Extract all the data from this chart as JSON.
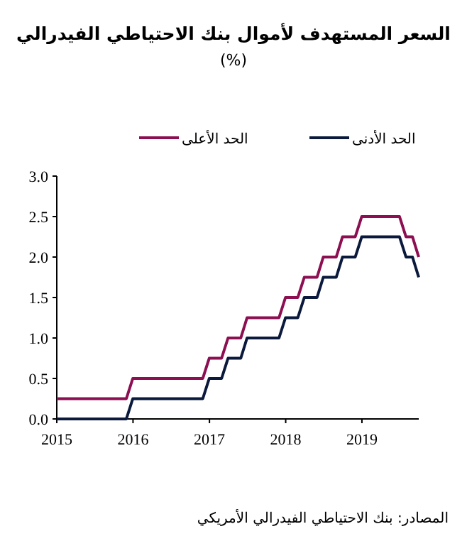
{
  "chart_data": {
    "type": "line",
    "title": "السعر المستهدف لأموال بنك الاحتياطي الفيدرالي",
    "subtitle": "(%)",
    "annotations": [
      "المصادر: بنك الاحتياطي الفيدرالي الأمريكي"
    ],
    "x": [
      "2015-01-01",
      "2015-11-30",
      "2015-12-31",
      "2016-11-30",
      "2016-12-31",
      "2017-02-28",
      "2017-03-31",
      "2017-05-31",
      "2017-06-30",
      "2017-11-30",
      "2017-12-31",
      "2018-02-28",
      "2018-03-31",
      "2018-05-31",
      "2018-06-30",
      "2018-08-31",
      "2018-09-30",
      "2018-11-30",
      "2018-12-31",
      "2019-06-30",
      "2019-07-31",
      "2019-08-31",
      "2019-09-30"
    ],
    "series": [
      {
        "name": "الحد الأدنى",
        "color": "#0b1a3c",
        "values": [
          0,
          0,
          0.25,
          0.25,
          0.5,
          0.5,
          0.75,
          0.75,
          1.0,
          1.0,
          1.25,
          1.25,
          1.5,
          1.5,
          1.75,
          1.75,
          2.0,
          2.0,
          2.25,
          2.25,
          2.0,
          2.0,
          1.75
        ]
      },
      {
        "name": "الحد الأعلى",
        "color": "#8c0f52",
        "values": [
          0.25,
          0.25,
          0.5,
          0.5,
          0.75,
          0.75,
          1.0,
          1.0,
          1.25,
          1.25,
          1.5,
          1.5,
          1.75,
          1.75,
          2.0,
          2.0,
          2.25,
          2.25,
          2.5,
          2.5,
          2.25,
          2.25,
          2.0
        ]
      }
    ],
    "xlim": [
      "2015-01-01",
      "2019-09-30"
    ],
    "xticks": [
      {
        "value": "2015-01-01",
        "label": "2015"
      },
      {
        "value": "2016-01-01",
        "label": "2016"
      },
      {
        "value": "2017-01-01",
        "label": "2017"
      },
      {
        "value": "2018-01-01",
        "label": "2018"
      },
      {
        "value": "2019-01-01",
        "label": "2019"
      }
    ],
    "ylim": [
      0,
      3
    ],
    "yticks": [
      {
        "value": 0,
        "label": "0.0"
      },
      {
        "value": 0.5,
        "label": "0.5"
      },
      {
        "value": 1,
        "label": "1.0"
      },
      {
        "value": 1.5,
        "label": "1.5"
      },
      {
        "value": 2,
        "label": "2.0"
      },
      {
        "value": 2.5,
        "label": "2.5"
      },
      {
        "value": 3,
        "label": "3.0"
      }
    ],
    "legend": "top",
    "grid": false,
    "marker": "none",
    "line_style": "solid"
  }
}
